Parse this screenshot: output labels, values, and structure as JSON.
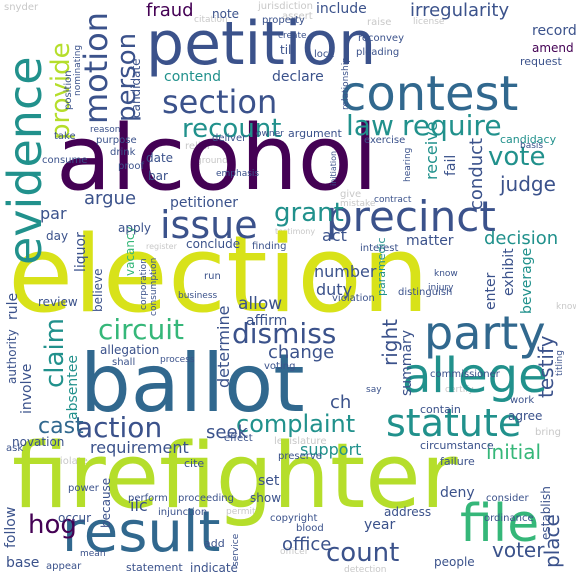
{
  "palette": {
    "dark_purple": "#440154",
    "indigo": "#3b528b",
    "blue": "#31688e",
    "teal": "#21918c",
    "green": "#35b779",
    "lime": "#b5de2b",
    "yellow_green": "#d8e219",
    "faint": "#c8c8c8"
  },
  "words": {
    "election": "election",
    "firefighter": "firefighter",
    "alcohol": "alcohol",
    "ballot": "ballot",
    "petition": "petition",
    "contest": "contest",
    "result": "result",
    "evidence": "evidence",
    "allege": "allege",
    "party": "party",
    "precinct": "precinct",
    "file": "file",
    "issue": "issue",
    "section": "section",
    "statute": "statute",
    "recount": "recount",
    "require": "require",
    "dismiss": "dismiss",
    "circuit": "circuit",
    "claim": "claim",
    "action": "action",
    "count": "count",
    "complaint": "complaint",
    "motion": "motion",
    "person": "person",
    "provide": "provide",
    "vote": "vote",
    "law": "law",
    "grant": "grant",
    "irregularity": "irregularity",
    "fraud": "fraud",
    "voter": "voter",
    "initial": "initial",
    "hog": "hog",
    "cast": "cast",
    "requirement": "requirement",
    "support": "support",
    "judge": "judge",
    "argue": "argue",
    "petitioner": "petitioner",
    "decision": "decision",
    "change": "change",
    "allow": "allow",
    "affirm": "affirm",
    "determine": "determine",
    "conduct": "conduct",
    "receive": "receive",
    "right": "right",
    "summary": "summary",
    "testify": "testify",
    "place": "place",
    "office": "office",
    "year": "year",
    "seek": "seek",
    "act": "act",
    "contend": "contend",
    "declare": "declare",
    "set": "set",
    "show": "show",
    "follow": "follow",
    "note": "note",
    "amend": "amend",
    "record": "record",
    "include": "include",
    "candidacy": "candidacy",
    "candidate": "candidate",
    "duty": "duty",
    "number": "number",
    "matter": "matter",
    "exhibit": "exhibit",
    "beverage": "beverage",
    "enter": "enter",
    "allegation": "allegation",
    "conclude": "conclude",
    "authority": "authority",
    "involve": "involve",
    "absentee": "absentee",
    "rule": "rule",
    "review": "review",
    "believe": "believe",
    "liquor": "liquor",
    "vacancy": "vacancy",
    "apply": "apply",
    "day": "day",
    "par": "par",
    "contain": "contain",
    "agree": "agree",
    "establish": "establish",
    "deny": "deny",
    "address": "address",
    "because": "because",
    "occur": "occur",
    "ilc": "ilc",
    "base": "base",
    "ch": "ch",
    "fail": "fail",
    "till": "till",
    "create": "create",
    "lock": "lock",
    "request": "request",
    "paramedic": "paramedic",
    "people": "people",
    "mean": "mean",
    "add": "add",
    "appear": "appear",
    "statement": "statement",
    "indicate": "indicate",
    "copyright": "copyright",
    "injunction": "injunction",
    "proceeding": "proceeding",
    "cite": "cite",
    "effect": "effect",
    "perform": "perform",
    "power": "power",
    "novation": "novation",
    "ask": "ask",
    "violate": "violate",
    "legislature": "legislature",
    "preserve": "preserve",
    "circumstance": "circumstance",
    "failure": "failure",
    "consider": "consider",
    "ordinance": "ordinance",
    "bring": "bring",
    "work": "work",
    "commissioner": "commissioner",
    "distinguish": "distinguish",
    "interest": "interest",
    "violation": "violation",
    "finding": "finding",
    "register": "register",
    "consumption": "consumption",
    "corporation": "corporation",
    "business": "business",
    "run": "run",
    "shall": "shall",
    "process": "process",
    "voting": "voting",
    "know": "know",
    "injury": "injury",
    "certify": "certify",
    "say": "say",
    "titling": "titling",
    "argument": "argument",
    "exercise": "exercise",
    "deliver": "deliver",
    "owner": "owner",
    "relief": "relief",
    "ground": "ground",
    "emphasis": "emphasis",
    "proof": "proof",
    "drink": "drink",
    "purpose": "purpose",
    "reason": "reason",
    "take": "take",
    "consume": "consume",
    "bar": "bar",
    "date": "date",
    "position": "position",
    "nominating": "nominating",
    "snyder": "snyder",
    "jurisdiction": "jurisdiction",
    "property": "property",
    "assert": "assert",
    "raise": "raise",
    "license": "license",
    "citation": "citation",
    "pleading": "pleading",
    "reconvey": "reconvey",
    "relationship": "relationship",
    "hearing": "hearing",
    "basis": "basis",
    "mistake": "mistake",
    "give": "give",
    "contract": "contract",
    "testimony": "testimony",
    "initiation": "initiation",
    "know_edge": "knowledge",
    "detection": "detection",
    "blood": "blood",
    "officer": "officer",
    "service": "service",
    "permit": "permit"
  }
}
